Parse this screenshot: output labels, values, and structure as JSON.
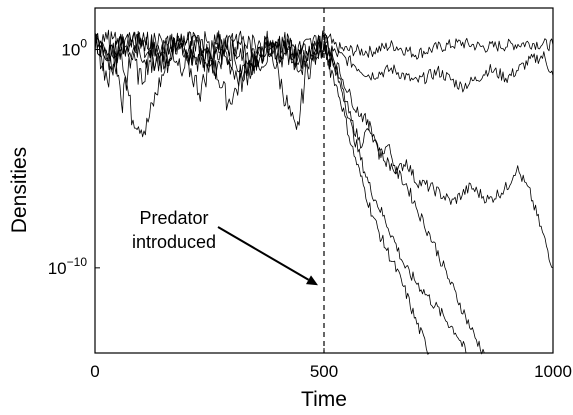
{
  "chart_data": {
    "type": "line",
    "xlabel": "Time",
    "ylabel": "Densities",
    "xlim": [
      0,
      1000
    ],
    "ylim_log10": [
      -13.9,
      1.9
    ],
    "y_scale": "log",
    "grid": false,
    "x_ticks": [
      {
        "value": 0,
        "label": "0"
      },
      {
        "value": 500,
        "label": "500"
      },
      {
        "value": 1000,
        "label": "1000"
      }
    ],
    "y_ticks": [
      {
        "log10": 0,
        "base": "10",
        "exp": "0"
      },
      {
        "log10": -10,
        "base": "10",
        "exp": "−10"
      }
    ],
    "annotation": {
      "lines": [
        "Predator",
        "introduced"
      ],
      "arrow_to_x": 500,
      "arrow_to_log10": -10.8
    },
    "intervention": {
      "x": 500,
      "style": "dashed"
    },
    "series": [
      {
        "points": [
          [
            0,
            0.6
          ],
          [
            20,
            -0.7
          ],
          [
            40,
            0.3
          ],
          [
            60,
            -2.4
          ],
          [
            80,
            -0.2
          ],
          [
            100,
            0.5
          ],
          [
            150,
            -0.5
          ],
          [
            200,
            0.6
          ],
          [
            260,
            -0.9
          ],
          [
            300,
            0.3
          ],
          [
            350,
            -0.4
          ],
          [
            400,
            0.5
          ],
          [
            450,
            -0.7
          ],
          [
            500,
            0.4
          ],
          [
            520,
            0.2
          ],
          [
            540,
            0.0
          ],
          [
            600,
            -0.1
          ],
          [
            650,
            0.2
          ],
          [
            700,
            -0.2
          ],
          [
            750,
            0.1
          ],
          [
            800,
            0.3
          ],
          [
            850,
            0.1
          ],
          [
            900,
            0.2
          ],
          [
            950,
            0.3
          ],
          [
            1000,
            0.2
          ]
        ]
      },
      {
        "points": [
          [
            0,
            0.4
          ],
          [
            30,
            -1.5
          ],
          [
            55,
            0.4
          ],
          [
            80,
            -3.0
          ],
          [
            110,
            -3.7
          ],
          [
            140,
            -1.6
          ],
          [
            180,
            0.5
          ],
          [
            230,
            -0.6
          ],
          [
            280,
            -0.3
          ],
          [
            320,
            -1.3
          ],
          [
            370,
            0.4
          ],
          [
            420,
            -0.5
          ],
          [
            450,
            -0.3
          ],
          [
            500,
            0.2
          ],
          [
            520,
            -0.1
          ],
          [
            560,
            -0.6
          ],
          [
            600,
            -1.2
          ],
          [
            650,
            -0.9
          ],
          [
            700,
            -1.5
          ],
          [
            750,
            -1.0
          ],
          [
            800,
            -1.7
          ],
          [
            830,
            -1.4
          ],
          [
            860,
            -0.9
          ],
          [
            900,
            -1.3
          ],
          [
            950,
            -0.5
          ],
          [
            980,
            -0.3
          ],
          [
            1000,
            -1.2
          ]
        ]
      },
      {
        "points": [
          [
            0,
            0.5
          ],
          [
            40,
            -0.9
          ],
          [
            70,
            0.2
          ],
          [
            100,
            -1.4
          ],
          [
            140,
            0.6
          ],
          [
            190,
            -0.7
          ],
          [
            240,
            0.4
          ],
          [
            290,
            -2.4
          ],
          [
            330,
            -1.2
          ],
          [
            380,
            0.3
          ],
          [
            440,
            -4.0
          ],
          [
            460,
            -1.1
          ],
          [
            500,
            0.3
          ],
          [
            520,
            -0.5
          ],
          [
            540,
            -1.8
          ],
          [
            560,
            -3.3
          ],
          [
            580,
            -4.3
          ],
          [
            600,
            -3.5
          ],
          [
            620,
            -4.8
          ],
          [
            640,
            -4.4
          ],
          [
            660,
            -5.6
          ],
          [
            680,
            -5.1
          ],
          [
            700,
            -6.0
          ],
          [
            740,
            -6.4
          ],
          [
            780,
            -7.0
          ],
          [
            820,
            -6.3
          ],
          [
            860,
            -6.9
          ],
          [
            900,
            -6.3
          ],
          [
            920,
            -5.4
          ],
          [
            950,
            -6.6
          ],
          [
            980,
            -8.6
          ],
          [
            1000,
            -10.0
          ]
        ]
      },
      {
        "points": [
          [
            0,
            0.3
          ],
          [
            40,
            -0.3
          ],
          [
            90,
            0.5
          ],
          [
            130,
            -0.8
          ],
          [
            180,
            0.2
          ],
          [
            230,
            -1.9
          ],
          [
            270,
            0.4
          ],
          [
            320,
            -0.9
          ],
          [
            370,
            -0.4
          ],
          [
            420,
            0.2
          ],
          [
            470,
            -0.6
          ],
          [
            500,
            0.2
          ],
          [
            520,
            -0.8
          ],
          [
            540,
            -1.9
          ],
          [
            560,
            -3.6
          ],
          [
            580,
            -5.0
          ],
          [
            600,
            -6.3
          ],
          [
            620,
            -7.2
          ],
          [
            640,
            -8.1
          ],
          [
            660,
            -9.1
          ],
          [
            680,
            -10.1
          ],
          [
            700,
            -10.6
          ],
          [
            730,
            -11.4
          ],
          [
            760,
            -12.2
          ],
          [
            790,
            -13.0
          ],
          [
            810,
            -13.9
          ]
        ]
      },
      {
        "points": [
          [
            0,
            0.6
          ],
          [
            30,
            -0.2
          ],
          [
            80,
            0.4
          ],
          [
            120,
            -0.6
          ],
          [
            170,
            0.3
          ],
          [
            220,
            -0.3
          ],
          [
            270,
            0.5
          ],
          [
            330,
            -0.7
          ],
          [
            390,
            0.1
          ],
          [
            450,
            -0.4
          ],
          [
            500,
            0.3
          ],
          [
            520,
            -1.2
          ],
          [
            540,
            -2.6
          ],
          [
            560,
            -4.4
          ],
          [
            580,
            -5.8
          ],
          [
            600,
            -7.2
          ],
          [
            620,
            -8.4
          ],
          [
            640,
            -9.3
          ],
          [
            660,
            -10.2
          ],
          [
            680,
            -11.2
          ],
          [
            700,
            -12.4
          ],
          [
            720,
            -13.4
          ],
          [
            730,
            -13.9
          ]
        ]
      },
      {
        "points": [
          [
            0,
            0.7
          ],
          [
            50,
            0.2
          ],
          [
            100,
            0.6
          ],
          [
            150,
            0.1
          ],
          [
            200,
            0.5
          ],
          [
            250,
            -0.2
          ],
          [
            300,
            0.6
          ],
          [
            350,
            0.1
          ],
          [
            400,
            0.4
          ],
          [
            450,
            0.0
          ],
          [
            500,
            0.5
          ],
          [
            520,
            -0.3
          ],
          [
            550,
            -1.8
          ],
          [
            570,
            -2.7
          ],
          [
            590,
            -3.2
          ],
          [
            610,
            -4.1
          ],
          [
            630,
            -5.0
          ],
          [
            650,
            -5.4
          ],
          [
            680,
            -6.2
          ],
          [
            710,
            -7.6
          ],
          [
            740,
            -8.9
          ],
          [
            770,
            -10.4
          ],
          [
            800,
            -11.8
          ],
          [
            830,
            -13.2
          ],
          [
            850,
            -13.9
          ]
        ]
      }
    ]
  }
}
